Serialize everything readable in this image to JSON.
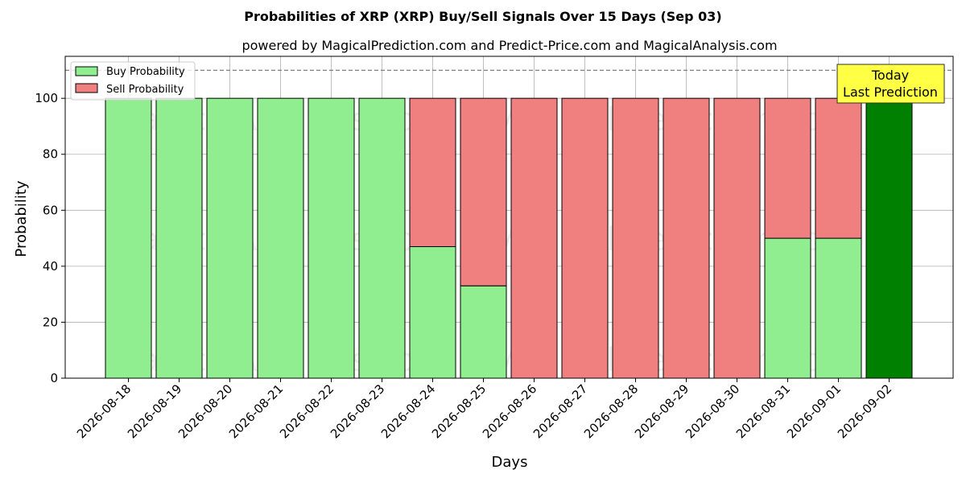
{
  "chart_data": {
    "type": "bar",
    "stacked": true,
    "title": "Probabilities of XRP (XRP) Buy/Sell Signals Over 15 Days (Sep 03)",
    "subtitle": "powered by MagicalPrediction.com and Predict-Price.com and MagicalAnalysis.com",
    "xlabel": "Days",
    "ylabel": "Probability",
    "ylim": [
      0,
      115
    ],
    "yticks": [
      0,
      20,
      40,
      60,
      80,
      100
    ],
    "grid": true,
    "legend_position": "top-left",
    "reference_line": {
      "y": 110,
      "style": "dashed",
      "color": "#808080"
    },
    "categories": [
      "2026-08-18",
      "2026-08-19",
      "2026-08-20",
      "2026-08-21",
      "2026-08-22",
      "2026-08-23",
      "2026-08-24",
      "2026-08-25",
      "2026-08-26",
      "2026-08-27",
      "2026-08-28",
      "2026-08-29",
      "2026-08-30",
      "2026-08-31",
      "2026-09-01",
      "2026-09-02"
    ],
    "series": [
      {
        "name": "Buy Probability",
        "color": "#90ee90",
        "values": [
          100,
          100,
          100,
          100,
          100,
          100,
          47,
          33,
          0,
          0,
          0,
          0,
          0,
          50,
          50,
          null
        ]
      },
      {
        "name": "Sell Probability",
        "color": "#f08080",
        "values": [
          0,
          0,
          0,
          0,
          0,
          0,
          53,
          67,
          100,
          100,
          100,
          100,
          100,
          50,
          50,
          null
        ]
      }
    ],
    "today_bar": {
      "category": "2026-09-02",
      "value": 100,
      "color": "#008000"
    },
    "annotation": {
      "lines": [
        "Today",
        "Last Prediction"
      ],
      "background": "#ffff44"
    },
    "watermarks": [
      "MagicalAnalysis.com",
      "MagicalPrediction.com"
    ]
  }
}
